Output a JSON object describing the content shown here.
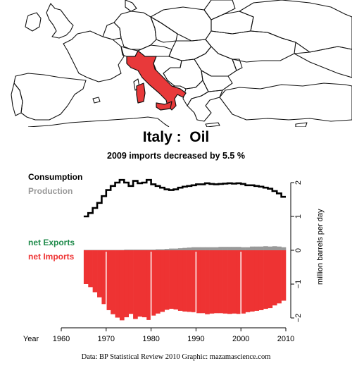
{
  "header": {
    "title": "Italy :  Oil",
    "subtitle": "2009 imports decreased by 5.5 %"
  },
  "legend": {
    "consumption": "Consumption",
    "production": "Production",
    "net_exports": "net Exports",
    "net_imports": "net Imports"
  },
  "colors": {
    "highlight_country": "#e8393a",
    "consumption": "#000000",
    "production": "#999999",
    "net_exports": "#1e8a4a",
    "net_imports": "#ee3333"
  },
  "footer": {
    "credit": "Data: BP Statistical Review 2010    Graphic: mazamascience.com"
  },
  "map": {
    "highlighted_country": "Italy"
  },
  "chart_data": {
    "type": "area",
    "xlabel": "Year",
    "ylabel": "million barrels per day",
    "xlim": [
      1960,
      2010
    ],
    "ylim": [
      -2.1,
      2.1
    ],
    "xticks": [
      1960,
      1970,
      1980,
      1990,
      2000,
      2010
    ],
    "yticks": [
      -2,
      -1,
      0,
      1,
      2
    ],
    "x": [
      1965,
      1966,
      1967,
      1968,
      1969,
      1970,
      1971,
      1972,
      1973,
      1974,
      1975,
      1976,
      1977,
      1978,
      1979,
      1980,
      1981,
      1982,
      1983,
      1984,
      1985,
      1986,
      1987,
      1988,
      1989,
      1990,
      1991,
      1992,
      1993,
      1994,
      1995,
      1996,
      1997,
      1998,
      1999,
      2000,
      2001,
      2002,
      2003,
      2004,
      2005,
      2006,
      2007,
      2008,
      2009
    ],
    "series": [
      {
        "name": "Consumption",
        "values": [
          1.0,
          1.1,
          1.25,
          1.4,
          1.6,
          1.78,
          1.9,
          2.0,
          2.08,
          2.0,
          1.9,
          2.05,
          1.98,
          2.0,
          2.08,
          1.95,
          1.9,
          1.85,
          1.8,
          1.78,
          1.8,
          1.85,
          1.88,
          1.9,
          1.92,
          1.95,
          1.95,
          1.98,
          1.96,
          1.95,
          1.96,
          1.97,
          1.98,
          1.97,
          1.98,
          1.96,
          1.92,
          1.92,
          1.9,
          1.88,
          1.85,
          1.82,
          1.75,
          1.68,
          1.58
        ]
      },
      {
        "name": "Production",
        "values": [
          0.01,
          0.01,
          0.01,
          0.01,
          0.01,
          0.01,
          0.01,
          0.01,
          0.01,
          0.02,
          0.02,
          0.02,
          0.02,
          0.02,
          0.02,
          0.02,
          0.03,
          0.03,
          0.04,
          0.05,
          0.05,
          0.06,
          0.07,
          0.08,
          0.09,
          0.09,
          0.09,
          0.09,
          0.09,
          0.09,
          0.1,
          0.1,
          0.1,
          0.1,
          0.1,
          0.09,
          0.09,
          0.11,
          0.11,
          0.11,
          0.12,
          0.11,
          0.12,
          0.11,
          0.09
        ]
      },
      {
        "name": "net Exports",
        "values": [
          0,
          0,
          0,
          0,
          0,
          0,
          0,
          0,
          0,
          0,
          0,
          0,
          0,
          0,
          0,
          0,
          0,
          0,
          0,
          0,
          0,
          0,
          0,
          0,
          0,
          0,
          0,
          0,
          0,
          0,
          0,
          0,
          0,
          0,
          0,
          0,
          0,
          0,
          0,
          0,
          0,
          0,
          0,
          0,
          0
        ]
      },
      {
        "name": "net Imports",
        "values": [
          -1.0,
          -1.09,
          -1.24,
          -1.39,
          -1.59,
          -1.77,
          -1.89,
          -1.99,
          -2.07,
          -1.98,
          -1.88,
          -2.03,
          -1.96,
          -1.98,
          -2.06,
          -1.93,
          -1.87,
          -1.82,
          -1.76,
          -1.73,
          -1.75,
          -1.79,
          -1.81,
          -1.82,
          -1.83,
          -1.86,
          -1.86,
          -1.89,
          -1.87,
          -1.86,
          -1.86,
          -1.87,
          -1.88,
          -1.87,
          -1.88,
          -1.87,
          -1.83,
          -1.81,
          -1.79,
          -1.77,
          -1.73,
          -1.71,
          -1.63,
          -1.57,
          -1.49
        ]
      }
    ]
  }
}
